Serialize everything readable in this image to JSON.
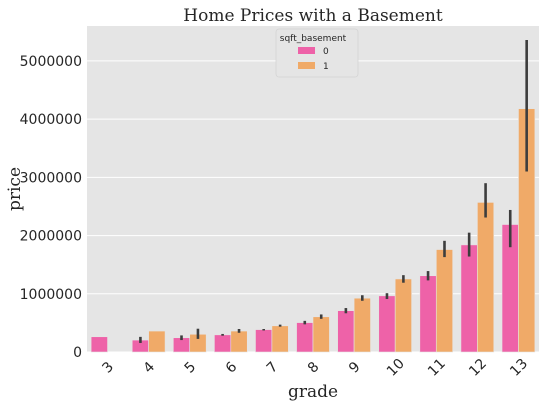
{
  "chart_data": {
    "type": "bar",
    "title": "Home Prices with a Basement",
    "xlabel": "grade",
    "ylabel": "price",
    "categories": [
      "3",
      "4",
      "5",
      "6",
      "7",
      "8",
      "9",
      "10",
      "11",
      "12",
      "13"
    ],
    "ylim": [
      0,
      5600000
    ],
    "yticks": [
      0,
      1000000,
      2000000,
      3000000,
      4000000,
      5000000
    ],
    "ytick_labels": [
      "0",
      "1000000",
      "2000000",
      "3000000",
      "4000000",
      "5000000"
    ],
    "grid": true,
    "background": "#e5e5e5",
    "legend": {
      "title": "sqft_basement",
      "placement": "top-center"
    },
    "series": [
      {
        "name": "0",
        "color": "#ee62a8",
        "values": [
          262000,
          205000,
          245000,
          295000,
          385000,
          505000,
          710000,
          965000,
          1310000,
          1840000,
          2190000
        ],
        "error_low": [
          null,
          155000,
          205000,
          280000,
          370000,
          475000,
          665000,
          910000,
          1230000,
          1640000,
          1800000
        ],
        "error_high": [
          null,
          260000,
          285000,
          310000,
          395000,
          535000,
          755000,
          1010000,
          1390000,
          2050000,
          2440000
        ]
      },
      {
        "name": "1",
        "color": "#f0aa68",
        "values": null,
        "values_list": [
          null,
          360000,
          305000,
          360000,
          450000,
          605000,
          925000,
          1255000,
          1760000,
          2570000,
          4180000
        ],
        "error_low": [
          null,
          null,
          225000,
          330000,
          435000,
          570000,
          880000,
          1190000,
          1630000,
          2310000,
          3100000
        ],
        "error_high": [
          null,
          null,
          400000,
          395000,
          470000,
          645000,
          975000,
          1320000,
          1910000,
          2900000,
          5360000
        ]
      }
    ]
  }
}
